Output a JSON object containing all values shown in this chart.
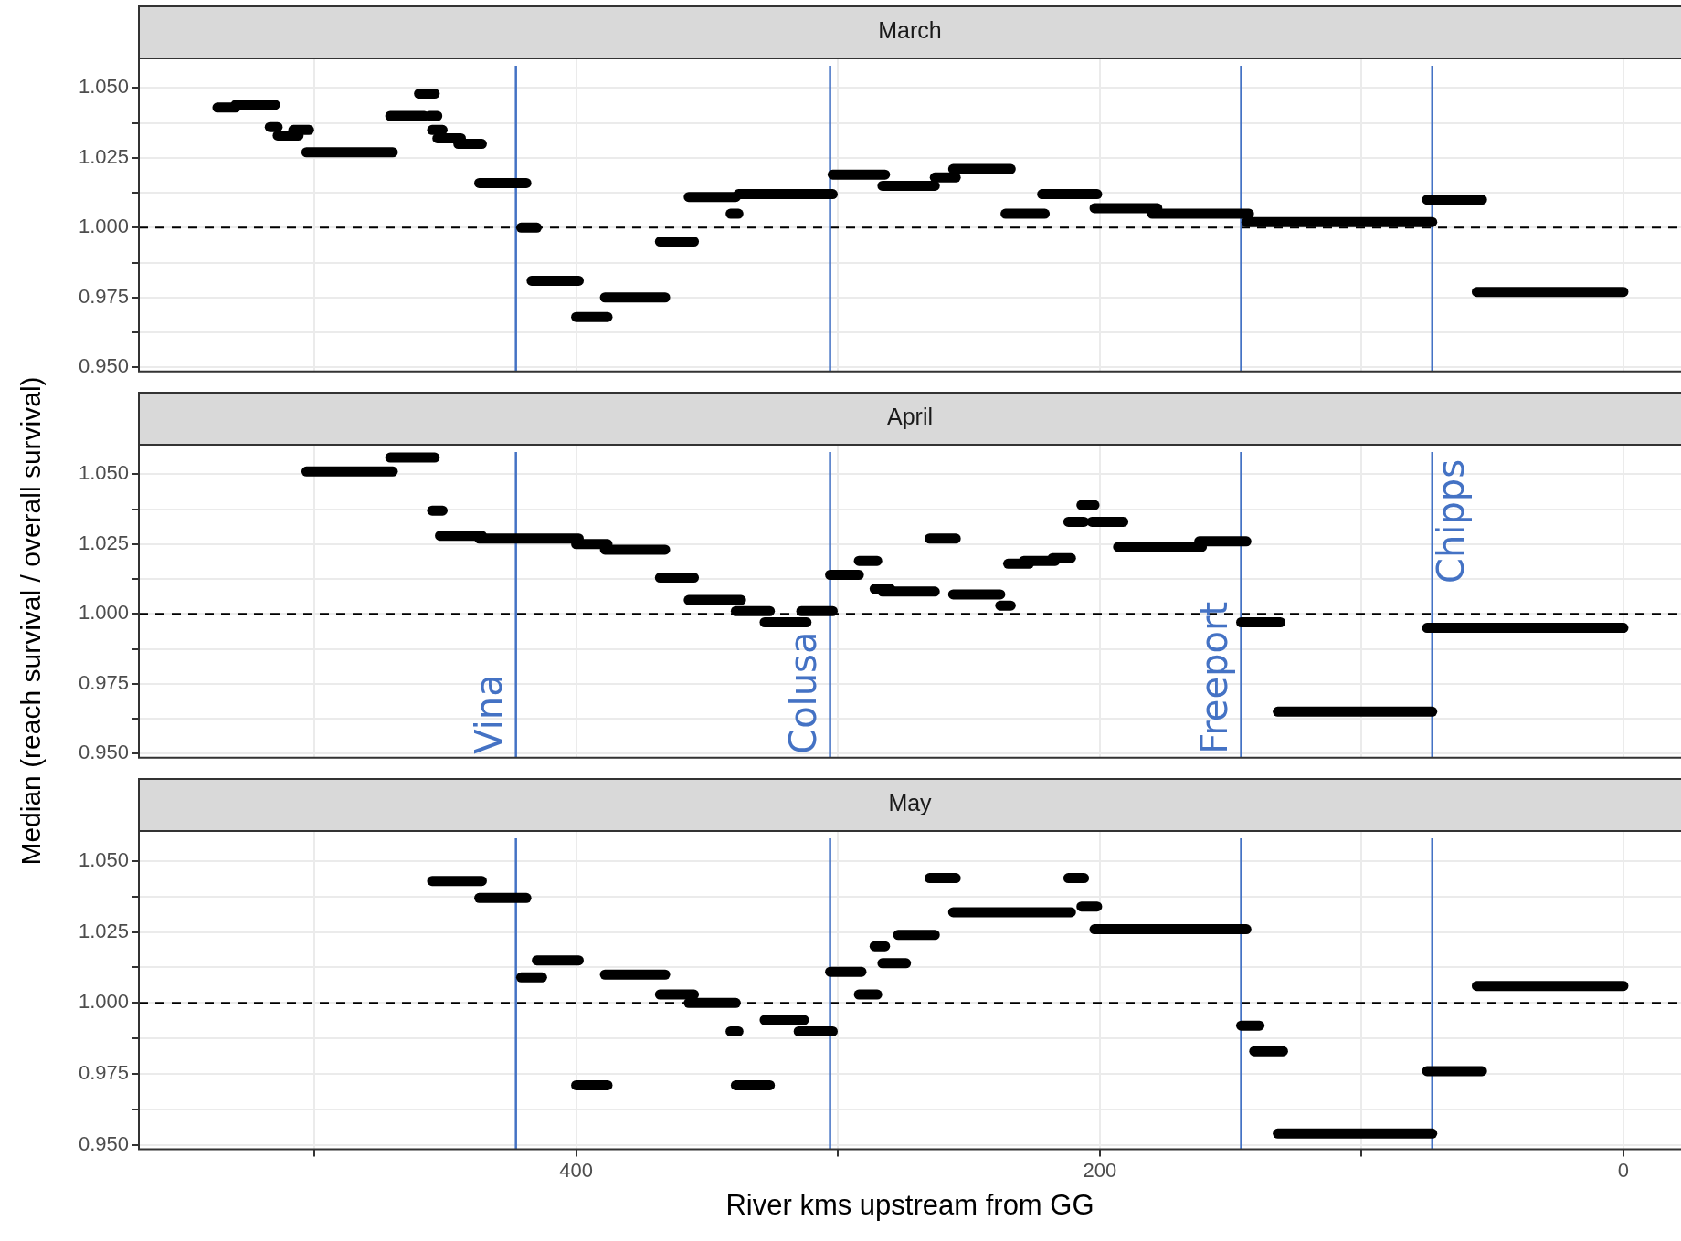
{
  "chart_data": [
    {
      "type": "line",
      "title": "March",
      "tick_labels": "y",
      "grid": true,
      "xlim": [
        567,
        -22
      ],
      "xticks": [
        {
          "value": 500,
          "label": null
        },
        {
          "value": 400,
          "label": null
        },
        {
          "value": 300,
          "label": null
        },
        {
          "value": 200,
          "label": null
        },
        {
          "value": 100,
          "label": null
        },
        {
          "value": 0,
          "label": null
        }
      ],
      "ylim": [
        0.9485,
        1.0606
      ],
      "yticks": [
        {
          "value": 0.95,
          "label": "0.950"
        },
        {
          "value": 0.9625,
          "label": null
        },
        {
          "value": 0.975,
          "label": "0.975"
        },
        {
          "value": 0.9875,
          "label": null
        },
        {
          "value": 1,
          "label": "1.000"
        },
        {
          "value": 1.0125,
          "label": null
        },
        {
          "value": 1.025,
          "label": "1.025"
        },
        {
          "value": 1.0375,
          "label": null
        },
        {
          "value": 1.05,
          "label": "1.050"
        }
      ],
      "series": [
        {
          "color": "#000000",
          "x": [
            537,
            530
          ],
          "values": [
            1.043,
            1.043
          ]
        },
        {
          "color": "#000000",
          "x": [
            530,
            515
          ],
          "values": [
            1.044,
            1.044
          ]
        },
        {
          "color": "#000000",
          "x": [
            517,
            514
          ],
          "values": [
            1.036,
            1.036
          ]
        },
        {
          "color": "#000000",
          "x": [
            514,
            506
          ],
          "values": [
            1.033,
            1.033
          ]
        },
        {
          "color": "#000000",
          "x": [
            508,
            502
          ],
          "values": [
            1.035,
            1.035
          ]
        },
        {
          "color": "#000000",
          "x": [
            503,
            470
          ],
          "values": [
            1.027,
            1.027
          ]
        },
        {
          "color": "#000000",
          "x": [
            471,
            458
          ],
          "values": [
            1.04,
            1.04
          ]
        },
        {
          "color": "#000000",
          "x": [
            460,
            454
          ],
          "values": [
            1.048,
            1.048
          ]
        },
        {
          "color": "#000000",
          "x": [
            456,
            453
          ],
          "values": [
            1.04,
            1.04
          ]
        },
        {
          "color": "#000000",
          "x": [
            455,
            451
          ],
          "values": [
            1.035,
            1.035
          ]
        },
        {
          "color": "#000000",
          "x": [
            453,
            444
          ],
          "values": [
            1.032,
            1.032
          ]
        },
        {
          "color": "#000000",
          "x": [
            445,
            436
          ],
          "values": [
            1.03,
            1.03
          ]
        },
        {
          "color": "#000000",
          "x": [
            437,
            419
          ],
          "values": [
            1.016,
            1.016
          ]
        },
        {
          "color": "#000000",
          "x": [
            421,
            415
          ],
          "values": [
            1.0,
            1.0
          ]
        },
        {
          "color": "#000000",
          "x": [
            417,
            399
          ],
          "values": [
            0.981,
            0.981
          ]
        },
        {
          "color": "#000000",
          "x": [
            400,
            388
          ],
          "values": [
            0.968,
            0.968
          ]
        },
        {
          "color": "#000000",
          "x": [
            389,
            366
          ],
          "values": [
            0.975,
            0.975
          ]
        },
        {
          "color": "#000000",
          "x": [
            368,
            355
          ],
          "values": [
            0.995,
            0.995
          ]
        },
        {
          "color": "#000000",
          "x": [
            357,
            339
          ],
          "values": [
            1.011,
            1.011
          ]
        },
        {
          "color": "#000000",
          "x": [
            341,
            338
          ],
          "values": [
            1.005,
            1.005
          ]
        },
        {
          "color": "#000000",
          "x": [
            338,
            302
          ],
          "values": [
            1.012,
            1.012
          ]
        },
        {
          "color": "#000000",
          "x": [
            302,
            282
          ],
          "values": [
            1.019,
            1.019
          ]
        },
        {
          "color": "#000000",
          "x": [
            283,
            263
          ],
          "values": [
            1.015,
            1.015
          ]
        },
        {
          "color": "#000000",
          "x": [
            263,
            255
          ],
          "values": [
            1.018,
            1.018
          ]
        },
        {
          "color": "#000000",
          "x": [
            256,
            234
          ],
          "values": [
            1.021,
            1.021
          ]
        },
        {
          "color": "#000000",
          "x": [
            236,
            221
          ],
          "values": [
            1.005,
            1.005
          ]
        },
        {
          "color": "#000000",
          "x": [
            222,
            201
          ],
          "values": [
            1.012,
            1.012
          ]
        },
        {
          "color": "#000000",
          "x": [
            202,
            178
          ],
          "values": [
            1.007,
            1.007
          ]
        },
        {
          "color": "#000000",
          "x": [
            180,
            143
          ],
          "values": [
            1.005,
            1.005
          ]
        },
        {
          "color": "#000000",
          "x": [
            144,
            73
          ],
          "values": [
            1.002,
            1.002
          ]
        },
        {
          "color": "#000000",
          "x": [
            75,
            54
          ],
          "values": [
            1.01,
            1.01
          ]
        },
        {
          "color": "#000000",
          "x": [
            56,
            0
          ],
          "values": [
            0.977,
            0.977
          ]
        }
      ],
      "ref_lines": [
        {
          "axis": "y",
          "value": 1,
          "line_style": "dashed",
          "color": "#000000"
        },
        {
          "axis": "x",
          "value": 423,
          "color": "#4472c4"
        },
        {
          "axis": "x",
          "value": 303,
          "color": "#4472c4"
        },
        {
          "axis": "x",
          "value": 146,
          "color": "#4472c4"
        },
        {
          "axis": "x",
          "value": 73,
          "color": "#4472c4"
        }
      ]
    },
    {
      "type": "line",
      "title": "April",
      "tick_labels": "y",
      "grid": true,
      "ylabel": "Median (reach survival / overall survival)",
      "xlim": [
        567,
        -22
      ],
      "xticks": [
        {
          "value": 500,
          "label": null
        },
        {
          "value": 400,
          "label": null
        },
        {
          "value": 300,
          "label": null
        },
        {
          "value": 200,
          "label": null
        },
        {
          "value": 100,
          "label": null
        },
        {
          "value": 0,
          "label": null
        }
      ],
      "ylim": [
        0.9485,
        1.0606
      ],
      "yticks": [
        {
          "value": 0.95,
          "label": "0.950"
        },
        {
          "value": 0.9625,
          "label": null
        },
        {
          "value": 0.975,
          "label": "0.975"
        },
        {
          "value": 0.9875,
          "label": null
        },
        {
          "value": 1,
          "label": "1.000"
        },
        {
          "value": 1.0125,
          "label": null
        },
        {
          "value": 1.025,
          "label": "1.025"
        },
        {
          "value": 1.0375,
          "label": null
        },
        {
          "value": 1.05,
          "label": "1.050"
        }
      ],
      "series": [
        {
          "color": "#000000",
          "x": [
            503,
            470
          ],
          "values": [
            1.051,
            1.051
          ]
        },
        {
          "color": "#000000",
          "x": [
            471,
            454
          ],
          "values": [
            1.056,
            1.056
          ]
        },
        {
          "color": "#000000",
          "x": [
            455,
            451
          ],
          "values": [
            1.037,
            1.037
          ]
        },
        {
          "color": "#000000",
          "x": [
            452,
            436
          ],
          "values": [
            1.028,
            1.028
          ]
        },
        {
          "color": "#000000",
          "x": [
            437,
            399
          ],
          "values": [
            1.027,
            1.027
          ]
        },
        {
          "color": "#000000",
          "x": [
            400,
            388
          ],
          "values": [
            1.025,
            1.025
          ]
        },
        {
          "color": "#000000",
          "x": [
            389,
            366
          ],
          "values": [
            1.023,
            1.023
          ]
        },
        {
          "color": "#000000",
          "x": [
            368,
            355
          ],
          "values": [
            1.013,
            1.013
          ]
        },
        {
          "color": "#000000",
          "x": [
            357,
            337
          ],
          "values": [
            1.005,
            1.005
          ]
        },
        {
          "color": "#000000",
          "x": [
            339,
            326
          ],
          "values": [
            1.001,
            1.001
          ]
        },
        {
          "color": "#000000",
          "x": [
            328,
            312
          ],
          "values": [
            0.997,
            0.997
          ]
        },
        {
          "color": "#000000",
          "x": [
            314,
            302
          ],
          "values": [
            1.001,
            1.001
          ]
        },
        {
          "color": "#000000",
          "x": [
            303,
            292
          ],
          "values": [
            1.014,
            1.014
          ]
        },
        {
          "color": "#000000",
          "x": [
            292,
            285
          ],
          "values": [
            1.019,
            1.019
          ]
        },
        {
          "color": "#000000",
          "x": [
            286,
            280
          ],
          "values": [
            1.009,
            1.009
          ]
        },
        {
          "color": "#000000",
          "x": [
            283,
            263
          ],
          "values": [
            1.008,
            1.008
          ]
        },
        {
          "color": "#000000",
          "x": [
            265,
            255
          ],
          "values": [
            1.027,
            1.027
          ]
        },
        {
          "color": "#000000",
          "x": [
            256,
            238
          ],
          "values": [
            1.007,
            1.007
          ]
        },
        {
          "color": "#000000",
          "x": [
            238,
            234
          ],
          "values": [
            1.003,
            1.003
          ]
        },
        {
          "color": "#000000",
          "x": [
            235,
            227
          ],
          "values": [
            1.018,
            1.018
          ]
        },
        {
          "color": "#000000",
          "x": [
            229,
            217
          ],
          "values": [
            1.019,
            1.019
          ]
        },
        {
          "color": "#000000",
          "x": [
            218,
            211
          ],
          "values": [
            1.02,
            1.02
          ]
        },
        {
          "color": "#000000",
          "x": [
            212,
            206
          ],
          "values": [
            1.033,
            1.033
          ]
        },
        {
          "color": "#000000",
          "x": [
            207,
            202
          ],
          "values": [
            1.039,
            1.039
          ]
        },
        {
          "color": "#000000",
          "x": [
            203,
            191
          ],
          "values": [
            1.033,
            1.033
          ]
        },
        {
          "color": "#000000",
          "x": [
            193,
            178
          ],
          "values": [
            1.024,
            1.024
          ]
        },
        {
          "color": "#000000",
          "x": [
            180,
            161
          ],
          "values": [
            1.024,
            1.024
          ]
        },
        {
          "color": "#000000",
          "x": [
            162,
            144
          ],
          "values": [
            1.026,
            1.026
          ]
        },
        {
          "color": "#000000",
          "x": [
            146,
            131
          ],
          "values": [
            0.997,
            0.997
          ]
        },
        {
          "color": "#000000",
          "x": [
            132,
            73
          ],
          "values": [
            0.965,
            0.965
          ]
        },
        {
          "color": "#000000",
          "x": [
            75,
            0
          ],
          "values": [
            0.995,
            0.995
          ]
        }
      ],
      "ref_lines": [
        {
          "axis": "y",
          "value": 1,
          "line_style": "dashed",
          "color": "#000000"
        },
        {
          "axis": "x",
          "value": 423,
          "label": "Vina",
          "color": "#4472c4"
        },
        {
          "axis": "x",
          "value": 303,
          "label": "Colusa",
          "color": "#4472c4"
        },
        {
          "axis": "x",
          "value": 146,
          "label": "Freeport",
          "color": "#4472c4"
        },
        {
          "axis": "x",
          "value": 73,
          "label": "Chipps",
          "color": "#4472c4"
        }
      ]
    },
    {
      "type": "line",
      "title": "May",
      "xlabel": "River kms upstream from GG",
      "grid": true,
      "xlim": [
        567,
        -22
      ],
      "xticks": [
        {
          "value": 500,
          "label": null
        },
        {
          "value": 400,
          "label": "400"
        },
        {
          "value": 300,
          "label": null
        },
        {
          "value": 200,
          "label": "200"
        },
        {
          "value": 100,
          "label": null
        },
        {
          "value": 0,
          "label": "0"
        }
      ],
      "ylim": [
        0.9485,
        1.0606
      ],
      "yticks": [
        {
          "value": 0.95,
          "label": "0.950"
        },
        {
          "value": 0.9625,
          "label": null
        },
        {
          "value": 0.975,
          "label": "0.975"
        },
        {
          "value": 0.9875,
          "label": null
        },
        {
          "value": 1,
          "label": "1.000"
        },
        {
          "value": 1.0125,
          "label": null
        },
        {
          "value": 1.025,
          "label": "1.025"
        },
        {
          "value": 1.0375,
          "label": null
        },
        {
          "value": 1.05,
          "label": "1.050"
        }
      ],
      "series": [
        {
          "color": "#000000",
          "x": [
            455,
            436
          ],
          "values": [
            1.043,
            1.043
          ]
        },
        {
          "color": "#000000",
          "x": [
            437,
            419
          ],
          "values": [
            1.037,
            1.037
          ]
        },
        {
          "color": "#000000",
          "x": [
            421,
            413
          ],
          "values": [
            1.009,
            1.009
          ]
        },
        {
          "color": "#000000",
          "x": [
            415,
            399
          ],
          "values": [
            1.015,
            1.015
          ]
        },
        {
          "color": "#000000",
          "x": [
            400,
            388
          ],
          "values": [
            0.971,
            0.971
          ]
        },
        {
          "color": "#000000",
          "x": [
            389,
            366
          ],
          "values": [
            1.01,
            1.01
          ]
        },
        {
          "color": "#000000",
          "x": [
            368,
            355
          ],
          "values": [
            1.003,
            1.003
          ]
        },
        {
          "color": "#000000",
          "x": [
            357,
            339
          ],
          "values": [
            1.0,
            1.0
          ]
        },
        {
          "color": "#000000",
          "x": [
            341,
            338
          ],
          "values": [
            0.99,
            0.99
          ]
        },
        {
          "color": "#000000",
          "x": [
            339,
            326
          ],
          "values": [
            0.971,
            0.971
          ]
        },
        {
          "color": "#000000",
          "x": [
            328,
            313
          ],
          "values": [
            0.994,
            0.994
          ]
        },
        {
          "color": "#000000",
          "x": [
            315,
            302
          ],
          "values": [
            0.99,
            0.99
          ]
        },
        {
          "color": "#000000",
          "x": [
            303,
            291
          ],
          "values": [
            1.011,
            1.011
          ]
        },
        {
          "color": "#000000",
          "x": [
            292,
            285
          ],
          "values": [
            1.003,
            1.003
          ]
        },
        {
          "color": "#000000",
          "x": [
            286,
            282
          ],
          "values": [
            1.02,
            1.02
          ]
        },
        {
          "color": "#000000",
          "x": [
            283,
            274
          ],
          "values": [
            1.014,
            1.014
          ]
        },
        {
          "color": "#000000",
          "x": [
            277,
            263
          ],
          "values": [
            1.024,
            1.024
          ]
        },
        {
          "color": "#000000",
          "x": [
            265,
            255
          ],
          "values": [
            1.044,
            1.044
          ]
        },
        {
          "color": "#000000",
          "x": [
            256,
            211
          ],
          "values": [
            1.032,
            1.032
          ]
        },
        {
          "color": "#000000",
          "x": [
            212,
            206
          ],
          "values": [
            1.044,
            1.044
          ]
        },
        {
          "color": "#000000",
          "x": [
            207,
            201
          ],
          "values": [
            1.034,
            1.034
          ]
        },
        {
          "color": "#000000",
          "x": [
            202,
            144
          ],
          "values": [
            1.026,
            1.026
          ]
        },
        {
          "color": "#000000",
          "x": [
            146,
            139
          ],
          "values": [
            0.992,
            0.992
          ]
        },
        {
          "color": "#000000",
          "x": [
            141,
            130
          ],
          "values": [
            0.983,
            0.983
          ]
        },
        {
          "color": "#000000",
          "x": [
            132,
            73
          ],
          "values": [
            0.954,
            0.954
          ]
        },
        {
          "color": "#000000",
          "x": [
            75,
            54
          ],
          "values": [
            0.976,
            0.976
          ]
        },
        {
          "color": "#000000",
          "x": [
            56,
            0
          ],
          "values": [
            1.006,
            1.006
          ]
        }
      ],
      "ref_lines": [
        {
          "axis": "y",
          "value": 1,
          "line_style": "dashed",
          "color": "#000000"
        },
        {
          "axis": "x",
          "value": 423,
          "color": "#4472c4"
        },
        {
          "axis": "x",
          "value": 303,
          "color": "#4472c4"
        },
        {
          "axis": "x",
          "value": 146,
          "color": "#4472c4"
        },
        {
          "axis": "x",
          "value": 73,
          "color": "#4472c4"
        }
      ]
    }
  ]
}
